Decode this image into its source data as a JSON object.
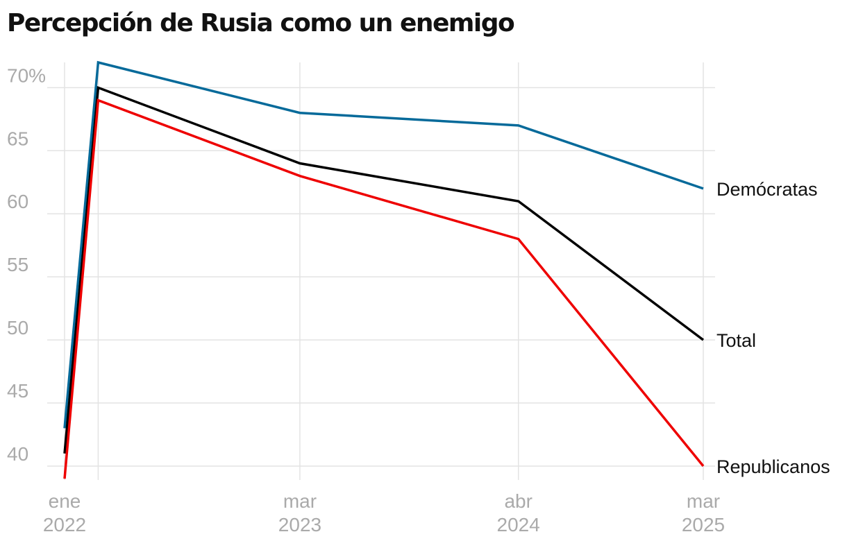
{
  "title": "Percepción de Rusia como un enemigo",
  "chart_data": {
    "type": "line",
    "title": "Percepción de Rusia como un enemigo",
    "y_unit_suffix": "%",
    "ylim": [
      38.9,
      72
    ],
    "grid": true,
    "legend": "direct-labels-right",
    "y_ticks": [
      "70%",
      "65",
      "60",
      "55",
      "50",
      "45",
      "40"
    ],
    "y_tick_values": [
      70,
      65,
      60,
      55,
      50,
      45,
      40
    ],
    "x_ticks": [
      {
        "month": "ene",
        "year": "2022"
      },
      {
        "month": "mar",
        "year": "2023"
      },
      {
        "month": "abr",
        "year": "2024"
      },
      {
        "month": "mar",
        "year": "2025"
      }
    ],
    "x_tick_dates": [
      "2022-01",
      "2023-03",
      "2024-04",
      "2025-03"
    ],
    "x_extra_gridlines": [
      "2022-03"
    ],
    "xlim": [
      "2022-01",
      "2025-03"
    ],
    "series": [
      {
        "name": "Demócratas",
        "color": "#066a9a",
        "points": [
          {
            "x": "2022-01",
            "y": 43
          },
          {
            "x": "2022-03",
            "y": 72
          },
          {
            "x": "2023-03",
            "y": 68
          },
          {
            "x": "2024-04",
            "y": 67
          },
          {
            "x": "2025-03",
            "y": 62
          }
        ]
      },
      {
        "name": "Total",
        "color": "#000000",
        "points": [
          {
            "x": "2022-01",
            "y": 41
          },
          {
            "x": "2022-03",
            "y": 70
          },
          {
            "x": "2023-03",
            "y": 64
          },
          {
            "x": "2024-04",
            "y": 61
          },
          {
            "x": "2025-03",
            "y": 50
          }
        ]
      },
      {
        "name": "Republicanos",
        "color": "#ee0000",
        "points": [
          {
            "x": "2022-01",
            "y": 39
          },
          {
            "x": "2022-03",
            "y": 69
          },
          {
            "x": "2023-03",
            "y": 63
          },
          {
            "x": "2024-04",
            "y": 58
          },
          {
            "x": "2025-03",
            "y": 40
          }
        ]
      }
    ]
  }
}
